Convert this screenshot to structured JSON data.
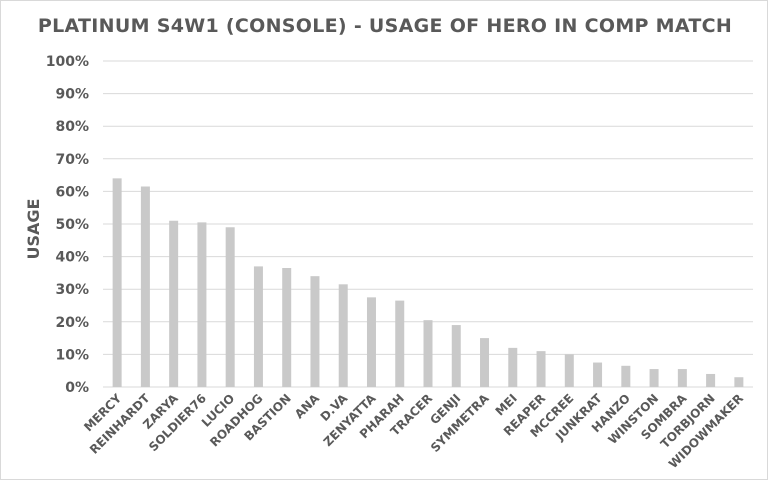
{
  "chart_data": {
    "type": "bar",
    "title": "PLATINUM S4W1 (CONSOLE) - USAGE OF HERO IN COMP MATCH",
    "xlabel": "",
    "ylabel": "USAGE",
    "ylim": [
      0,
      100
    ],
    "yticks": [
      "0%",
      "10%",
      "20%",
      "30%",
      "40%",
      "50%",
      "60%",
      "70%",
      "80%",
      "90%",
      "100%"
    ],
    "grid": true,
    "categories": [
      "MERCY",
      "REINHARDT",
      "ZARYA",
      "SOLDIER76",
      "LUCIO",
      "ROADHOG",
      "BASTION",
      "ANA",
      "D.VA",
      "ZENYATTA",
      "PHARAH",
      "TRACER",
      "GENJI",
      "SYMMETRA",
      "MEI",
      "REAPER",
      "MCCREE",
      "JUNKRAT",
      "HANZO",
      "WINSTON",
      "SOMBRA",
      "TORBJORN",
      "WIDOWMAKER"
    ],
    "values": [
      64,
      61.5,
      51,
      50.5,
      49,
      37,
      36.5,
      34,
      31.5,
      27.5,
      26.5,
      20.5,
      19,
      15,
      12,
      11,
      10,
      7.5,
      6.5,
      5.5,
      5.5,
      4,
      3
    ],
    "colors": {
      "bar": "#c9c9c9",
      "grid": "#d9d9d9",
      "text": "#595959"
    }
  }
}
